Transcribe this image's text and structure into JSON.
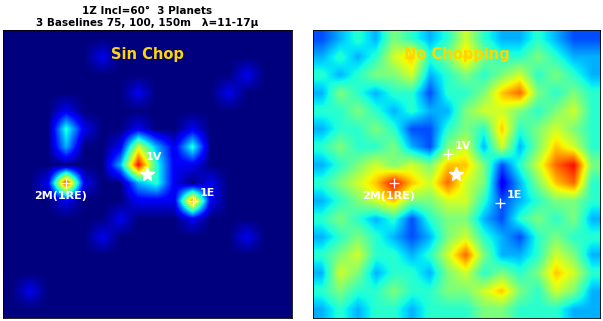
{
  "chart_data": [
    {
      "type": "heatmap",
      "title": "1Z Incl=60°  3 Planets\n3 Baselines 75, 100, 150m   λ=11-17μ",
      "panel_label": "Sin Chop",
      "xlim": [
        0,
        16
      ],
      "ylim": [
        0,
        16
      ],
      "tick_labels": false,
      "color_range": [
        0,
        10
      ],
      "cells": [
        [
          0,
          0,
          0,
          0,
          0,
          0,
          0,
          0,
          0,
          0,
          0,
          0,
          0,
          0,
          0,
          0
        ],
        [
          0,
          0,
          0,
          0,
          0,
          1,
          0,
          0,
          0,
          0,
          0,
          0,
          0,
          0,
          0,
          0
        ],
        [
          0,
          0,
          0,
          0,
          0,
          0,
          0,
          0,
          0,
          0,
          0,
          0,
          0,
          1,
          0,
          0
        ],
        [
          0,
          0,
          0,
          0,
          0,
          0,
          0,
          1,
          0,
          0,
          0,
          0,
          1,
          0,
          0,
          0
        ],
        [
          0,
          0,
          0,
          1,
          0,
          0,
          0,
          0,
          0,
          0,
          0,
          0,
          0,
          0,
          0,
          0
        ],
        [
          0,
          0,
          0,
          4,
          1,
          0,
          0,
          1,
          0,
          0,
          1,
          0,
          0,
          0,
          0,
          0
        ],
        [
          0,
          0,
          0,
          3,
          0,
          0,
          1,
          6,
          3,
          1,
          4,
          0,
          0,
          0,
          0,
          0
        ],
        [
          0,
          0,
          0,
          0,
          0,
          0,
          3,
          9,
          4,
          1,
          1,
          0,
          0,
          0,
          0,
          0
        ],
        [
          0,
          0,
          1,
          9,
          1,
          0,
          0,
          3,
          4,
          1,
          0,
          1,
          0,
          0,
          0,
          0
        ],
        [
          0,
          0,
          0,
          1,
          0,
          0,
          0,
          1,
          1,
          1,
          8,
          1,
          0,
          0,
          0,
          0
        ],
        [
          0,
          0,
          0,
          0,
          0,
          0,
          1,
          0,
          0,
          0,
          1,
          0,
          0,
          0,
          0,
          0
        ],
        [
          0,
          0,
          0,
          0,
          0,
          1,
          0,
          0,
          0,
          0,
          0,
          0,
          0,
          1,
          0,
          0
        ],
        [
          0,
          0,
          0,
          0,
          0,
          0,
          0,
          0,
          0,
          0,
          0,
          0,
          0,
          0,
          0,
          0
        ],
        [
          0,
          0,
          0,
          0,
          0,
          0,
          0,
          0,
          0,
          0,
          0,
          0,
          0,
          0,
          0,
          0
        ],
        [
          0,
          1,
          0,
          0,
          0,
          0,
          0,
          0,
          0,
          0,
          0,
          0,
          0,
          0,
          0,
          0
        ],
        [
          0,
          0,
          0,
          0,
          0,
          0,
          0,
          0,
          0,
          0,
          0,
          0,
          0,
          0,
          0,
          0
        ]
      ],
      "star": {
        "x": 8,
        "y": 8,
        "marker": "star"
      },
      "points": [
        {
          "label": "1V",
          "x": 7.5,
          "y": 8.5,
          "marker": "none"
        },
        {
          "label": "2M(1RE)",
          "x": 3.5,
          "y": 7.5,
          "marker": "plus"
        },
        {
          "label": "1E",
          "x": 10.5,
          "y": 6.5,
          "marker": "plus"
        }
      ]
    },
    {
      "type": "heatmap",
      "panel_label": "No Chopping",
      "xlim": [
        0,
        16
      ],
      "ylim": [
        0,
        16
      ],
      "tick_labels": false,
      "color_range": [
        0,
        10
      ],
      "cells": [
        [
          2,
          3,
          4,
          3,
          5,
          4,
          3,
          4,
          6,
          4,
          3,
          3,
          4,
          3,
          2,
          2
        ],
        [
          3,
          4,
          3,
          4,
          6,
          7,
          4,
          5,
          7,
          5,
          4,
          4,
          5,
          4,
          3,
          3
        ],
        [
          4,
          3,
          4,
          5,
          5,
          6,
          3,
          4,
          5,
          4,
          5,
          6,
          4,
          5,
          4,
          3
        ],
        [
          3,
          5,
          4,
          3,
          4,
          4,
          2,
          4,
          4,
          5,
          7,
          8,
          5,
          4,
          5,
          4
        ],
        [
          4,
          4,
          5,
          4,
          3,
          4,
          3,
          3,
          5,
          6,
          6,
          5,
          4,
          5,
          6,
          4
        ],
        [
          3,
          4,
          4,
          5,
          4,
          2,
          2,
          4,
          5,
          4,
          7,
          4,
          5,
          6,
          5,
          4
        ],
        [
          4,
          5,
          4,
          4,
          5,
          3,
          2,
          5,
          6,
          3,
          6,
          3,
          5,
          7,
          6,
          4
        ],
        [
          3,
          4,
          5,
          6,
          5,
          6,
          5,
          7,
          7,
          5,
          2,
          4,
          6,
          8,
          9,
          5
        ],
        [
          4,
          5,
          6,
          7,
          9,
          7,
          6,
          8,
          6,
          5,
          1,
          3,
          5,
          7,
          8,
          4
        ],
        [
          3,
          4,
          5,
          6,
          7,
          5,
          5,
          6,
          6,
          4,
          2,
          3,
          4,
          5,
          5,
          4
        ],
        [
          4,
          5,
          4,
          3,
          4,
          2,
          4,
          5,
          5,
          3,
          2,
          4,
          5,
          4,
          5,
          3
        ],
        [
          3,
          4,
          5,
          4,
          3,
          2,
          3,
          5,
          6,
          4,
          3,
          2,
          4,
          5,
          4,
          4
        ],
        [
          4,
          5,
          6,
          4,
          4,
          3,
          4,
          6,
          8,
          5,
          3,
          3,
          4,
          6,
          5,
          3
        ],
        [
          3,
          6,
          5,
          3,
          4,
          4,
          3,
          5,
          6,
          4,
          5,
          4,
          5,
          7,
          6,
          4
        ],
        [
          4,
          5,
          4,
          4,
          5,
          4,
          4,
          5,
          5,
          6,
          7,
          5,
          4,
          6,
          5,
          3
        ],
        [
          3,
          4,
          3,
          4,
          4,
          3,
          4,
          4,
          4,
          5,
          5,
          4,
          4,
          4,
          3,
          3
        ]
      ],
      "star": {
        "x": 8,
        "y": 8,
        "marker": "star"
      },
      "points": [
        {
          "label": "1V",
          "x": 7.5,
          "y": 9.1,
          "marker": "plus"
        },
        {
          "label": "2M(1RE)",
          "x": 4.5,
          "y": 7.5,
          "marker": "plus"
        },
        {
          "label": "1E",
          "x": 10.4,
          "y": 6.4,
          "marker": "plus"
        }
      ]
    }
  ]
}
